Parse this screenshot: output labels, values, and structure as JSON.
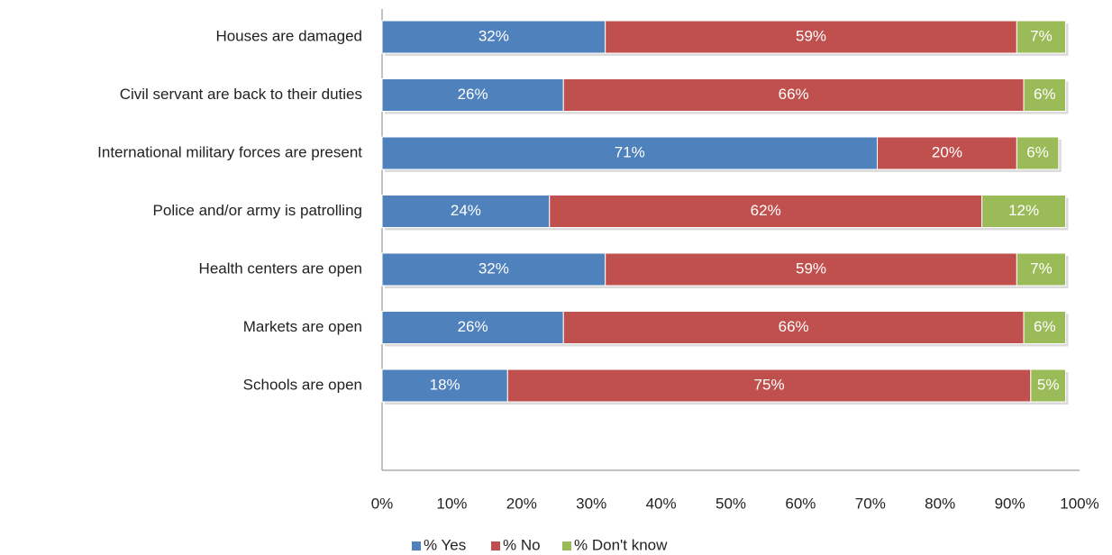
{
  "chart_data": {
    "type": "bar",
    "orientation": "horizontal",
    "stacked": "percent",
    "categories": [
      "Houses are  damaged",
      "Civil servant are back to their duties",
      "International military forces are present",
      "Police and/or army is patrolling",
      "Health centers are open",
      "Markets are open",
      "Schools are open"
    ],
    "series": [
      {
        "name": "% Yes",
        "color": "#4F81BD",
        "values": [
          32,
          26,
          71,
          24,
          32,
          26,
          18
        ],
        "labels": [
          "32%",
          "26%",
          "71%",
          "24%",
          "32%",
          "26%",
          "18%"
        ]
      },
      {
        "name": "% No",
        "color": "#C0504D",
        "values": [
          59,
          66,
          20,
          62,
          59,
          66,
          75
        ],
        "labels": [
          "59%",
          "66%",
          "20%",
          "62%",
          "59%",
          "66%",
          "75%"
        ]
      },
      {
        "name": "% Don't know",
        "color": "#9BBB59",
        "values": [
          7,
          6,
          6,
          12,
          7,
          6,
          5
        ],
        "labels": [
          "7%",
          "6%",
          "6%",
          "12%",
          "7%",
          "6%",
          "5%"
        ]
      }
    ],
    "xlim": [
      0,
      100
    ],
    "xticks": [
      "0%",
      "10%",
      "20%",
      "30%",
      "40%",
      "50%",
      "60%",
      "70%",
      "80%",
      "90%",
      "100%"
    ],
    "grid": false,
    "legend_position": "bottom"
  }
}
